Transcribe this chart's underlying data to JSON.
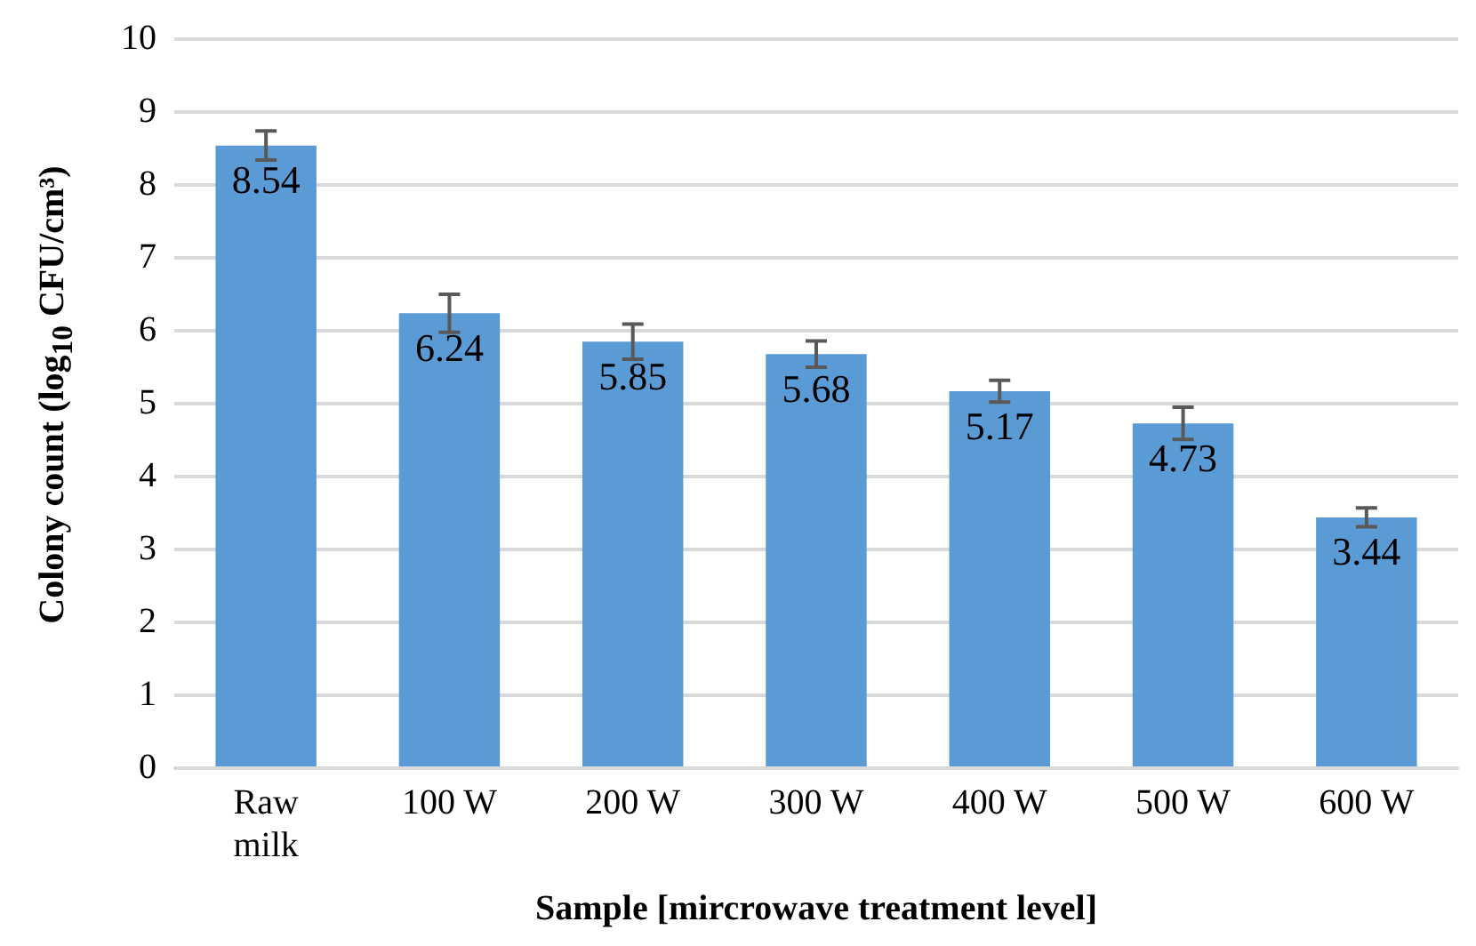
{
  "chart_data": {
    "type": "bar",
    "xlabel": "Sample [mircrowave treatment level]",
    "ylabel": "Colony count (log$_{10}$ CFU/cm³)",
    "categories": [
      "Raw milk",
      "100 W",
      "200 W",
      "300 W",
      "400 W",
      "500 W",
      "600 W"
    ],
    "values": [
      8.54,
      6.24,
      5.85,
      5.68,
      5.17,
      4.73,
      3.44
    ],
    "errors": [
      0.2,
      0.26,
      0.24,
      0.18,
      0.15,
      0.22,
      0.13
    ],
    "color": "#5b9bd5",
    "data_labels": true,
    "ylim": [
      0,
      10
    ],
    "yticks": [
      0,
      1,
      2,
      3,
      4,
      5,
      6,
      7,
      8,
      9,
      10
    ],
    "grid": "y",
    "legend": false
  }
}
